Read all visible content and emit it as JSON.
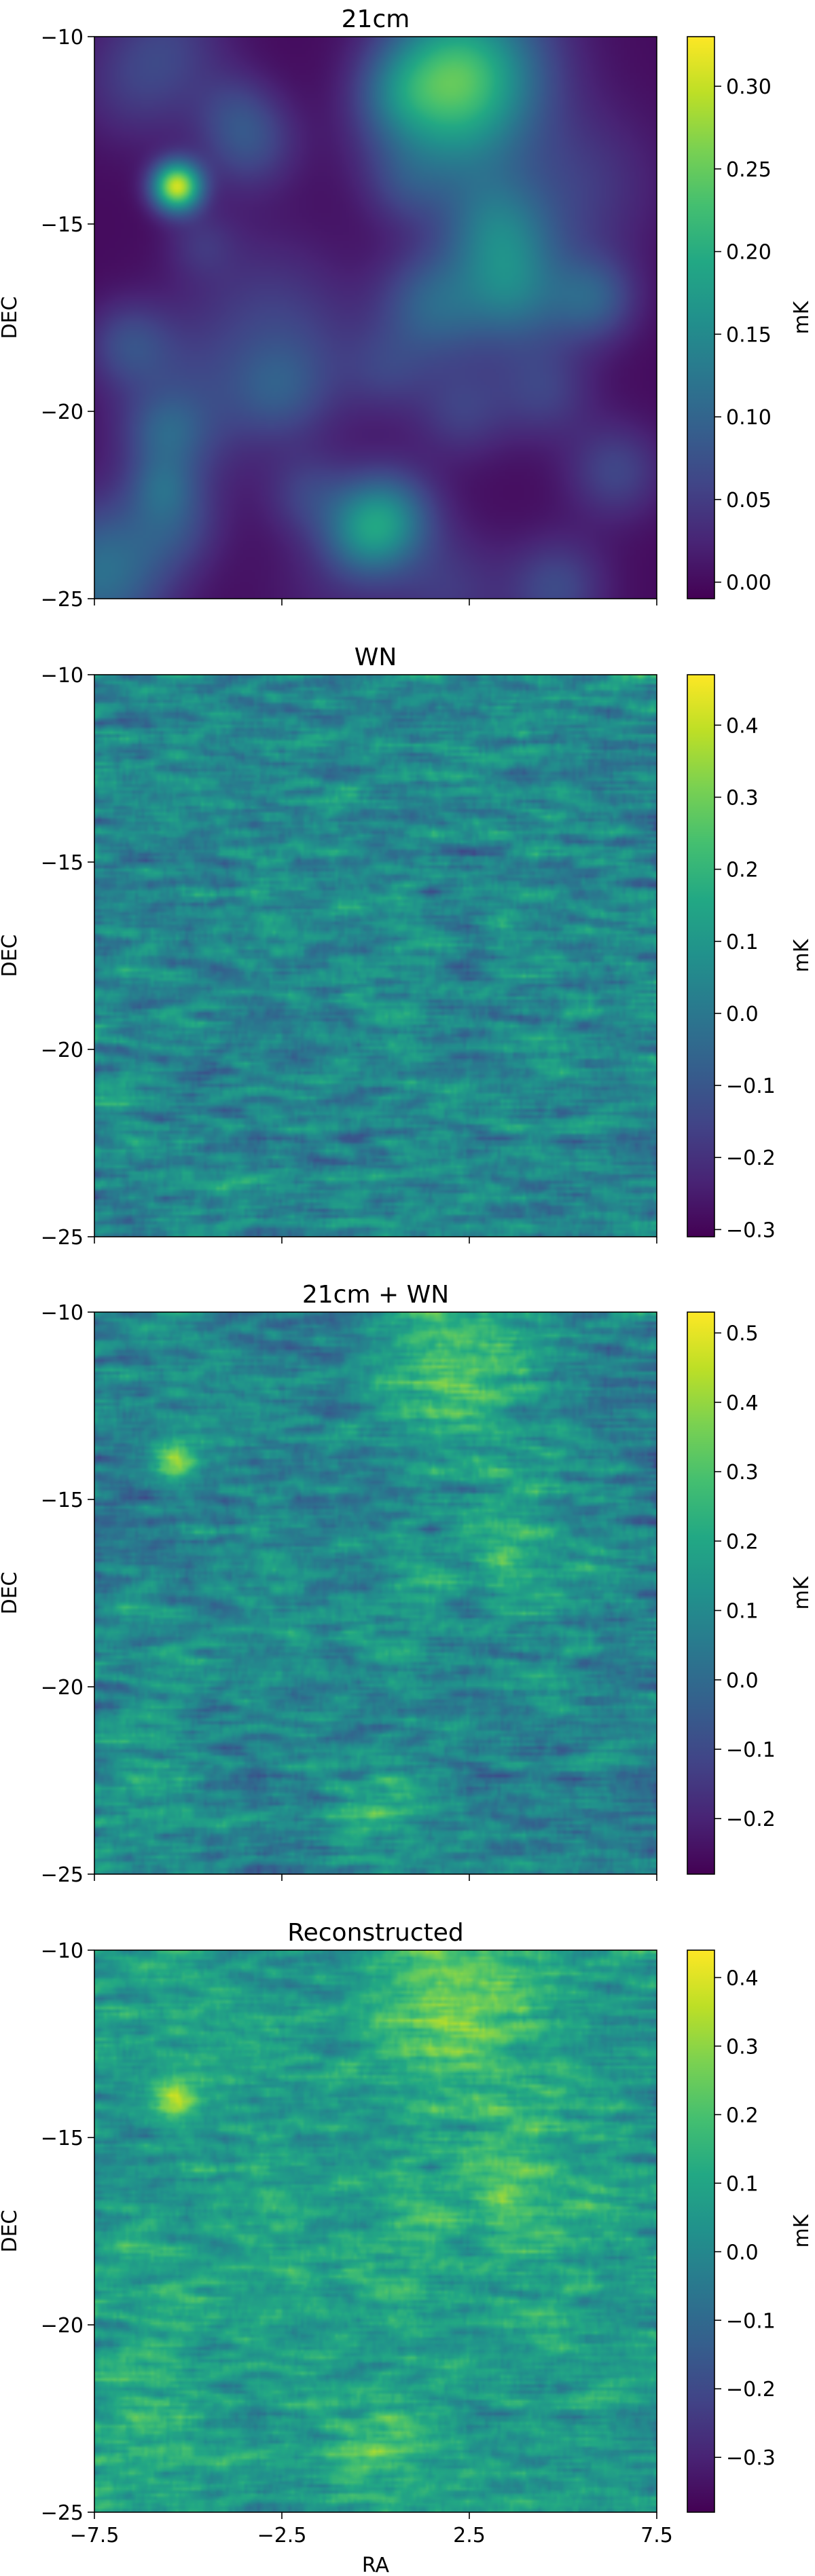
{
  "chart_data": [
    {
      "type": "heatmap",
      "title": "21cm",
      "ylabel": "DEC",
      "xlabel": "",
      "xlim": [
        -7.5,
        7.5
      ],
      "ylim": [
        -25,
        -10
      ],
      "yticks": [
        -10,
        -15,
        -20,
        -25
      ],
      "xticks": [
        -7.5,
        -2.5,
        2.5,
        7.5
      ],
      "show_xticklabels": false,
      "colorbar": {
        "label": "mK",
        "min": -0.01,
        "max": 0.33,
        "ticks": [
          0.0,
          0.05,
          0.1,
          0.15,
          0.2,
          0.25,
          0.3
        ],
        "tick_labels": [
          "0.00",
          "0.05",
          "0.10",
          "0.15",
          "0.20",
          "0.25",
          "0.30"
        ]
      },
      "colormap": "viridis",
      "features": "smooth blobs of 21cm signal; bright peak near RA -5.3, DEC -14.0; secondary concentration near RA 0.3, DEC -22.8"
    },
    {
      "type": "heatmap",
      "title": "WN",
      "ylabel": "DEC",
      "xlabel": "",
      "xlim": [
        -7.5,
        7.5
      ],
      "ylim": [
        -25,
        -10
      ],
      "yticks": [
        -10,
        -15,
        -20,
        -25
      ],
      "xticks": [
        -7.5,
        -2.5,
        2.5,
        7.5
      ],
      "show_xticklabels": false,
      "colorbar": {
        "label": "mK",
        "min": -0.31,
        "max": 0.47,
        "ticks": [
          -0.3,
          -0.2,
          -0.1,
          0.0,
          0.1,
          0.2,
          0.3,
          0.4
        ],
        "tick_labels": [
          "−0.3",
          "−0.2",
          "−0.1",
          "0.0",
          "0.1",
          "0.2",
          "0.3",
          "0.4"
        ]
      },
      "colormap": "viridis",
      "features": "white noise with horizontally streaked texture across the whole field"
    },
    {
      "type": "heatmap",
      "title": "21cm + WN",
      "ylabel": "DEC",
      "xlabel": "",
      "xlim": [
        -7.5,
        7.5
      ],
      "ylim": [
        -25,
        -10
      ],
      "yticks": [
        -10,
        -15,
        -20,
        -25
      ],
      "xticks": [
        -7.5,
        -2.5,
        2.5,
        7.5
      ],
      "show_xticklabels": false,
      "colorbar": {
        "label": "mK",
        "min": -0.28,
        "max": 0.53,
        "ticks": [
          -0.2,
          -0.1,
          0.0,
          0.1,
          0.2,
          0.3,
          0.4,
          0.5
        ],
        "tick_labels": [
          "−0.2",
          "−0.1",
          "0.0",
          "0.1",
          "0.2",
          "0.3",
          "0.4",
          "0.5"
        ]
      },
      "colormap": "viridis",
      "features": "sum of 21cm signal and white noise"
    },
    {
      "type": "heatmap",
      "title": "Reconstructed",
      "ylabel": "DEC",
      "xlabel": "RA",
      "xlim": [
        -7.5,
        7.5
      ],
      "ylim": [
        -25,
        -10
      ],
      "yticks": [
        -10,
        -15,
        -20,
        -25
      ],
      "xticks": [
        -7.5,
        -2.5,
        2.5,
        7.5
      ],
      "xtick_labels": [
        "−7.5",
        "−2.5",
        "2.5",
        "7.5"
      ],
      "show_xticklabels": true,
      "colorbar": {
        "label": "mK",
        "min": -0.38,
        "max": 0.44,
        "ticks": [
          -0.3,
          -0.2,
          -0.1,
          0.0,
          0.1,
          0.2,
          0.3,
          0.4
        ],
        "tick_labels": [
          "−0.3",
          "−0.2",
          "−0.1",
          "0.0",
          "0.1",
          "0.2",
          "0.3",
          "0.4"
        ]
      },
      "colormap": "viridis",
      "features": "reconstructed map; bright spot near RA -5.3, DEC -14.2 recovered"
    }
  ],
  "ytick_labels": [
    "−10",
    "−15",
    "−20",
    "−25"
  ]
}
